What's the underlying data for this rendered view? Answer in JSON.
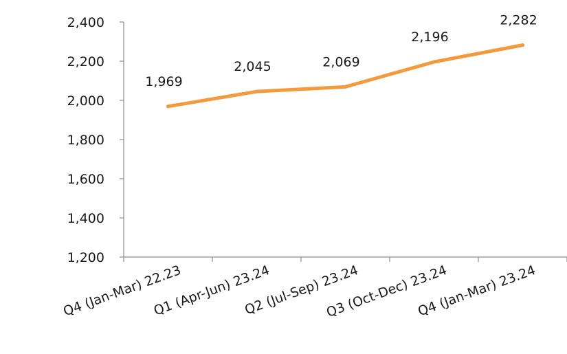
{
  "chart_data": {
    "type": "line",
    "categories": [
      "Q4 (Jan-Mar) 22.23",
      "Q1 (Apr-Jun) 23.24",
      "Q2 (Jul-Sep) 23.24",
      "Q3 (Oct-Dec) 23.24",
      "Q4 (Jan-Mar) 23.24"
    ],
    "series": [
      {
        "values": [
          1969,
          2045,
          2069,
          2196,
          2282
        ],
        "labels": [
          "1,969",
          "2,045",
          "2,069",
          "2,196",
          "2,282"
        ],
        "color": "#F59A3C"
      }
    ],
    "ylim": [
      1200,
      2400
    ],
    "yticks": [
      1200,
      1400,
      1600,
      1800,
      2000,
      2200,
      2400
    ],
    "ytick_labels": [
      "1,200",
      "1,400",
      "1,600",
      "1,800",
      "2,000",
      "2,200",
      "2,400"
    ],
    "axis_color": "#8c8c8c",
    "grid": false,
    "legend": "none",
    "title": "",
    "xlabel": "",
    "ylabel": ""
  }
}
